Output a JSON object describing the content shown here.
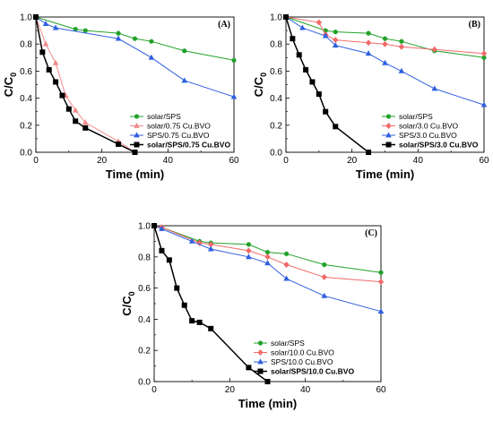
{
  "chart_data": [
    {
      "type": "line",
      "panel_label": "(A)",
      "xlabel": "Time (min)",
      "ylabel": "C/C0",
      "xlim": [
        0,
        60
      ],
      "ylim": [
        0,
        1.0
      ],
      "xticks": [
        0,
        20,
        40,
        60
      ],
      "yticks": [
        0.0,
        0.2,
        0.4,
        0.6,
        0.8,
        1.0
      ],
      "legend_position": "bottom-right",
      "series": [
        {
          "name": "solar/SPS",
          "color": "#22a12a",
          "marker": "circle",
          "x": [
            0,
            12,
            15,
            25,
            30,
            35,
            45,
            60
          ],
          "y": [
            1.0,
            0.91,
            0.9,
            0.88,
            0.84,
            0.82,
            0.75,
            0.68
          ]
        },
        {
          "name": "solar/0.75 Cu.BVO",
          "color": "#f08a8a",
          "marker": "triangle-up",
          "x": [
            0,
            3,
            6,
            9,
            12,
            15,
            25,
            30
          ],
          "y": [
            1.0,
            0.8,
            0.66,
            0.42,
            0.31,
            0.22,
            0.08,
            0.0
          ]
        },
        {
          "name": "SPS/0.75 Cu.BVO",
          "color": "#2f5fe0",
          "marker": "triangle-up",
          "x": [
            0,
            3,
            6,
            25,
            35,
            45,
            60
          ],
          "y": [
            1.0,
            0.95,
            0.92,
            0.84,
            0.7,
            0.53,
            0.41
          ]
        },
        {
          "name": "solar/SPS/0.75 Cu.BVO",
          "color": "#000000",
          "marker": "square",
          "bold": true,
          "x": [
            0,
            2,
            4,
            6,
            8,
            10,
            12,
            15,
            25,
            30
          ],
          "y": [
            1.0,
            0.74,
            0.61,
            0.52,
            0.42,
            0.32,
            0.23,
            0.18,
            0.06,
            0.0
          ]
        }
      ]
    },
    {
      "type": "line",
      "panel_label": "(B)",
      "xlabel": "Time (min)",
      "ylabel": "C/C0",
      "xlim": [
        0,
        60
      ],
      "ylim": [
        0,
        1.0
      ],
      "xticks": [
        0,
        20,
        40,
        60
      ],
      "yticks": [
        0.0,
        0.2,
        0.4,
        0.6,
        0.8,
        1.0
      ],
      "legend_position": "bottom-right",
      "series": [
        {
          "name": "solar/SPS",
          "color": "#22a12a",
          "marker": "circle",
          "x": [
            0,
            12,
            15,
            25,
            30,
            35,
            45,
            60
          ],
          "y": [
            1.0,
            0.9,
            0.89,
            0.88,
            0.84,
            0.82,
            0.75,
            0.7
          ]
        },
        {
          "name": "solar/3.0 Cu.BVO",
          "color": "#f06a6a",
          "marker": "diamond",
          "x": [
            0,
            10,
            12,
            15,
            25,
            30,
            35,
            45,
            60
          ],
          "y": [
            1.0,
            0.96,
            0.87,
            0.83,
            0.81,
            0.8,
            0.78,
            0.76,
            0.73
          ]
        },
        {
          "name": "SPS/3.0 Cu.BVO",
          "color": "#2f5fe0",
          "marker": "triangle-up",
          "x": [
            0,
            5,
            12,
            15,
            25,
            30,
            35,
            45,
            60
          ],
          "y": [
            1.0,
            0.92,
            0.86,
            0.79,
            0.73,
            0.66,
            0.6,
            0.47,
            0.35
          ]
        },
        {
          "name": "solar/SPS/3.0 Cu.BVO",
          "color": "#000000",
          "marker": "square",
          "bold": true,
          "x": [
            0,
            2,
            4,
            6,
            8,
            10,
            12,
            15,
            25
          ],
          "y": [
            1.0,
            0.84,
            0.72,
            0.61,
            0.52,
            0.43,
            0.3,
            0.19,
            0.0
          ]
        }
      ]
    },
    {
      "type": "line",
      "panel_label": "(C)",
      "xlabel": "Time (min)",
      "ylabel": "C/C0",
      "xlim": [
        0,
        60
      ],
      "ylim": [
        0,
        1.0
      ],
      "xticks": [
        0,
        20,
        40,
        60
      ],
      "yticks": [
        0.0,
        0.2,
        0.4,
        0.6,
        0.8,
        1.0
      ],
      "legend_position": "bottom-right",
      "series": [
        {
          "name": "solar/SPS",
          "color": "#22a12a",
          "marker": "circle",
          "x": [
            0,
            2,
            12,
            15,
            25,
            30,
            35,
            45,
            60
          ],
          "y": [
            1.0,
            0.99,
            0.9,
            0.89,
            0.88,
            0.83,
            0.82,
            0.75,
            0.7
          ]
        },
        {
          "name": "solar/10.0 Cu.BVO",
          "color": "#f06a6a",
          "marker": "diamond",
          "x": [
            0,
            2,
            12,
            15,
            25,
            30,
            35,
            45,
            60
          ],
          "y": [
            1.0,
            0.99,
            0.89,
            0.88,
            0.84,
            0.8,
            0.75,
            0.67,
            0.64
          ]
        },
        {
          "name": "SPS/10.0 Cu.BVO",
          "color": "#2f5fe0",
          "marker": "triangle-up",
          "x": [
            0,
            2,
            10,
            15,
            25,
            30,
            35,
            45,
            60
          ],
          "y": [
            1.0,
            0.98,
            0.9,
            0.85,
            0.8,
            0.76,
            0.66,
            0.55,
            0.45
          ]
        },
        {
          "name": "solar/SPS/10.0 Cu.BVO",
          "color": "#000000",
          "marker": "square",
          "bold": true,
          "x": [
            0,
            2,
            4,
            6,
            8,
            10,
            12,
            15,
            25,
            30
          ],
          "y": [
            1.0,
            0.84,
            0.78,
            0.6,
            0.49,
            0.39,
            0.38,
            0.34,
            0.09,
            0.0
          ]
        }
      ]
    }
  ]
}
